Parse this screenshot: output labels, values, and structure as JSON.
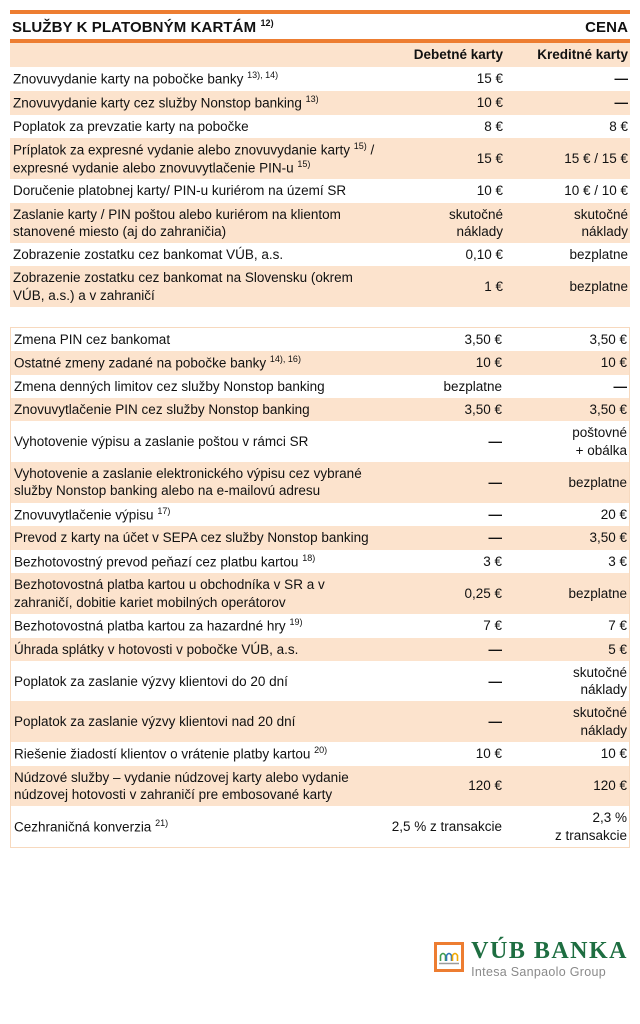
{
  "colors": {
    "accent_orange": "#ED7D31",
    "row_peach": "#FCE3CD",
    "brand_green": "#1E6E41",
    "logo_subtitle_gray": "#8A8A8A"
  },
  "table1": {
    "title": "SLUŽBY K PLATOBNÝM KARTÁM ^{12)}",
    "price_header": "CENA",
    "col_debit": "Debetné karty",
    "col_credit": "Kreditné karty",
    "rows": [
      {
        "label": "Znovuvydanie karty na pobočke banky ^{13), 14)}",
        "debit": "15 €",
        "credit": "—"
      },
      {
        "label": "Znovuvydanie karty cez služby Nonstop banking ^{13)}",
        "debit": "10 €",
        "credit": "—"
      },
      {
        "label": "Poplatok za prevzatie karty na pobočke",
        "debit": "8 €",
        "credit": "8 €"
      },
      {
        "label": "Príplatok za expresné vydanie alebo znovuvydanie karty ^{15)} / expresné vydanie alebo znovuvytlačenie PIN-u ^{15)}",
        "debit": "15 €",
        "credit": "15 € / 15 €"
      },
      {
        "label": "Doručenie platobnej karty/ PIN-u kuriérom na území SR",
        "debit": "10 €",
        "credit": "10 € / 10 €"
      },
      {
        "label": "Zaslanie karty / PIN poštou alebo kuriérom na klientom stanovené miesto (aj do zahraničia)",
        "debit": "skutočné\nnáklady",
        "credit": "skutočné\nnáklady"
      },
      {
        "label": "Zobrazenie zostatku cez bankomat VÚB, a.s.",
        "debit": "0,10 €",
        "credit": "bezplatne"
      },
      {
        "label": "Zobrazenie zostatku cez bankomat na Slovensku (okrem VÚB, a.s.) a v zahraničí",
        "debit": "1 €",
        "credit": "bezplatne"
      }
    ]
  },
  "table2": {
    "rows": [
      {
        "label": "Zmena PIN cez bankomat",
        "debit": "3,50 €",
        "credit": "3,50 €"
      },
      {
        "label": "Ostatné zmeny zadané na pobočke banky ^{14), 16)}",
        "debit": "10 €",
        "credit": "10 €"
      },
      {
        "label": "Zmena denných limitov cez služby Nonstop banking",
        "debit": "bezplatne",
        "credit": "—"
      },
      {
        "label": "Znovuvytlačenie PIN cez služby Nonstop banking",
        "debit": "3,50 €",
        "credit": "3,50 €"
      },
      {
        "label": "Vyhotovenie výpisu a zaslanie poštou v rámci SR",
        "debit": "—",
        "credit": "poštovné\n+ obálka"
      },
      {
        "label": "Vyhotovenie a zaslanie elektronického výpisu cez vybrané služby Nonstop banking alebo na e-mailovú adresu",
        "debit": "—",
        "credit": "bezplatne"
      },
      {
        "label": "Znovuvytlačenie výpisu ^{17)}",
        "debit": "—",
        "credit": "20 €"
      },
      {
        "label": "Prevod z karty na účet v SEPA cez služby Nonstop banking",
        "debit": "—",
        "credit": "3,50 €"
      },
      {
        "label": "Bezhotovostný prevod peňazí cez platbu kartou ^{18)}",
        "debit": "3 €",
        "credit": "3 €"
      },
      {
        "label": "Bezhotovostná platba kartou u obchodníka v SR a v zahraničí, dobitie kariet mobilných operátorov",
        "debit": "0,25 €",
        "credit": "bezplatne"
      },
      {
        "label": "Bezhotovostná platba kartou za hazardné hry ^{19)}",
        "debit": "7 €",
        "credit": "7 €"
      },
      {
        "label": "Úhrada splátky v hotovosti v pobočke VÚB, a.s.",
        "debit": "—",
        "credit": "5 €"
      },
      {
        "label": "Poplatok za zaslanie výzvy klientovi do 20 dní",
        "debit": "—",
        "credit": "skutočné\nnáklady"
      },
      {
        "label": "Poplatok za zaslanie výzvy klientovi nad 20 dní",
        "debit": "—",
        "credit": "skutočné\nnáklady"
      },
      {
        "label": "Riešenie žiadostí klientov o vrátenie platby kartou ^{20)}",
        "debit": "10 €",
        "credit": "10 €"
      },
      {
        "label": "Núdzové služby – vydanie núdzovej karty alebo vydanie núdzovej hotovosti v zahraničí pre embosované karty",
        "debit": "120 €",
        "credit": "120 €"
      },
      {
        "label": "Cezhraničná konverzia ^{21)}",
        "debit": "2,5 % z transakcie",
        "credit": "2,3 %\nz transakcie"
      }
    ]
  },
  "logo": {
    "name": "VÚB BANKA",
    "subtitle": "Intesa Sanpaolo Group",
    "icon": "vub-arches-icon"
  }
}
